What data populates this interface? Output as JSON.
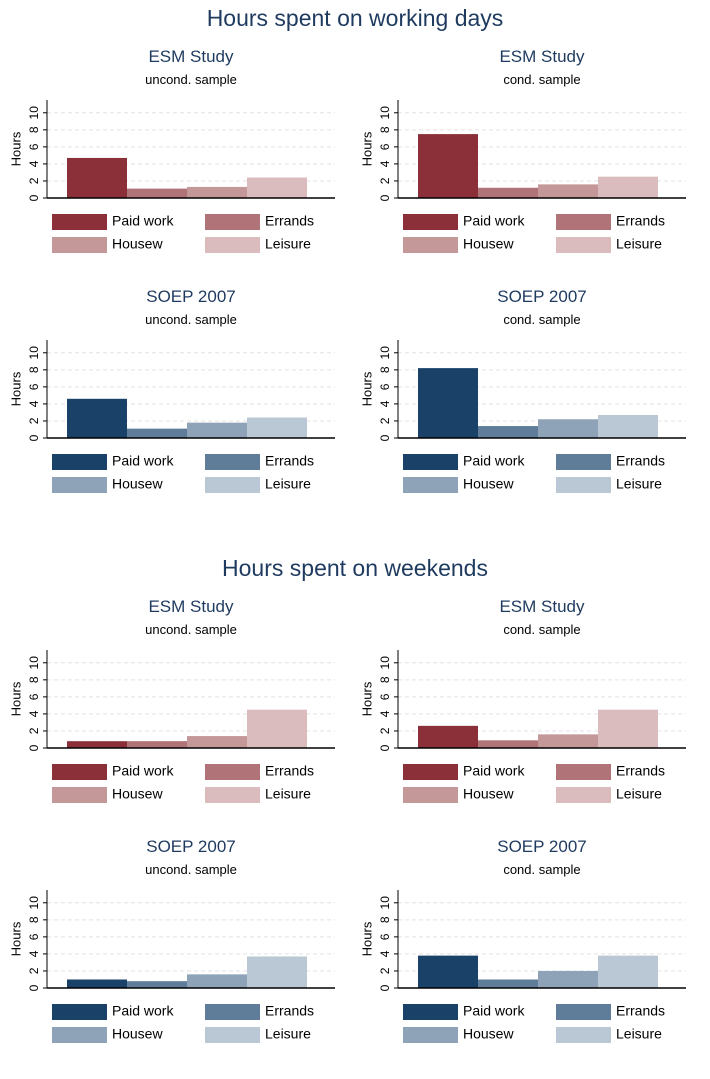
{
  "headings": [
    "Hours spent on working days",
    "Hours spent on weekends"
  ],
  "chart_data": [
    {
      "type": "bar",
      "title": "ESM Study",
      "subtitle": "uncond. sample",
      "ylabel": "Hours",
      "categories": [
        "Paid work",
        "Errands",
        "Housew",
        "Leisure"
      ],
      "values": [
        4.7,
        1.1,
        1.3,
        2.4
      ],
      "colors": [
        "#8b3038",
        "#b07378",
        "#c49799",
        "#dbbcbe"
      ],
      "ylim": [
        0,
        11.5
      ],
      "yticks": [
        0,
        2,
        4,
        6,
        8,
        10
      ],
      "grid": true
    },
    {
      "type": "bar",
      "title": "ESM Study",
      "subtitle": "cond. sample",
      "ylabel": "Hours",
      "categories": [
        "Paid work",
        "Errands",
        "Housew",
        "Leisure"
      ],
      "values": [
        7.5,
        1.2,
        1.6,
        2.5
      ],
      "colors": [
        "#8b3038",
        "#b07378",
        "#c49799",
        "#dbbcbe"
      ],
      "ylim": [
        0,
        11.5
      ],
      "yticks": [
        0,
        2,
        4,
        6,
        8,
        10
      ],
      "grid": true
    },
    {
      "type": "bar",
      "title": "SOEP 2007",
      "subtitle": "uncond. sample",
      "ylabel": "Hours",
      "categories": [
        "Paid work",
        "Errands",
        "Housew",
        "Leisure"
      ],
      "values": [
        4.6,
        1.1,
        1.8,
        2.4
      ],
      "colors": [
        "#1a4269",
        "#5f7c99",
        "#8ea3b7",
        "#b9c8d4"
      ],
      "ylim": [
        0,
        11.5
      ],
      "yticks": [
        0,
        2,
        4,
        6,
        8,
        10
      ],
      "grid": true
    },
    {
      "type": "bar",
      "title": "SOEP 2007",
      "subtitle": "cond. sample",
      "ylabel": "Hours",
      "categories": [
        "Paid work",
        "Errands",
        "Housew",
        "Leisure"
      ],
      "values": [
        8.2,
        1.4,
        2.2,
        2.7
      ],
      "colors": [
        "#1a4269",
        "#5f7c99",
        "#8ea3b7",
        "#b9c8d4"
      ],
      "ylim": [
        0,
        11.5
      ],
      "yticks": [
        0,
        2,
        4,
        6,
        8,
        10
      ],
      "grid": true
    },
    {
      "type": "bar",
      "title": "ESM Study",
      "subtitle": "uncond. sample",
      "ylabel": "Hours",
      "categories": [
        "Paid work",
        "Errands",
        "Housew",
        "Leisure"
      ],
      "values": [
        0.8,
        0.8,
        1.4,
        4.5
      ],
      "colors": [
        "#8b3038",
        "#b07378",
        "#c49799",
        "#dbbcbe"
      ],
      "ylim": [
        0,
        11.5
      ],
      "yticks": [
        0,
        2,
        4,
        6,
        8,
        10
      ],
      "grid": true
    },
    {
      "type": "bar",
      "title": "ESM Study",
      "subtitle": "cond. sample",
      "ylabel": "Hours",
      "categories": [
        "Paid work",
        "Errands",
        "Housew",
        "Leisure"
      ],
      "values": [
        2.6,
        0.9,
        1.6,
        4.5
      ],
      "colors": [
        "#8b3038",
        "#b07378",
        "#c49799",
        "#dbbcbe"
      ],
      "ylim": [
        0,
        11.5
      ],
      "yticks": [
        0,
        2,
        4,
        6,
        8,
        10
      ],
      "grid": true
    },
    {
      "type": "bar",
      "title": "SOEP 2007",
      "subtitle": "uncond. sample",
      "ylabel": "Hours",
      "categories": [
        "Paid work",
        "Errands",
        "Housew",
        "Leisure"
      ],
      "values": [
        1.0,
        0.8,
        1.6,
        3.7
      ],
      "colors": [
        "#1a4269",
        "#5f7c99",
        "#8ea3b7",
        "#b9c8d4"
      ],
      "ylim": [
        0,
        11.5
      ],
      "yticks": [
        0,
        2,
        4,
        6,
        8,
        10
      ],
      "grid": true
    },
    {
      "type": "bar",
      "title": "SOEP 2007",
      "subtitle": "cond. sample",
      "ylabel": "Hours",
      "categories": [
        "Paid work",
        "Errands",
        "Housew",
        "Leisure"
      ],
      "values": [
        3.8,
        1.0,
        2.0,
        3.8
      ],
      "colors": [
        "#1a4269",
        "#5f7c99",
        "#8ea3b7",
        "#b9c8d4"
      ],
      "ylim": [
        0,
        11.5
      ],
      "yticks": [
        0,
        2,
        4,
        6,
        8,
        10
      ],
      "grid": true
    }
  ]
}
